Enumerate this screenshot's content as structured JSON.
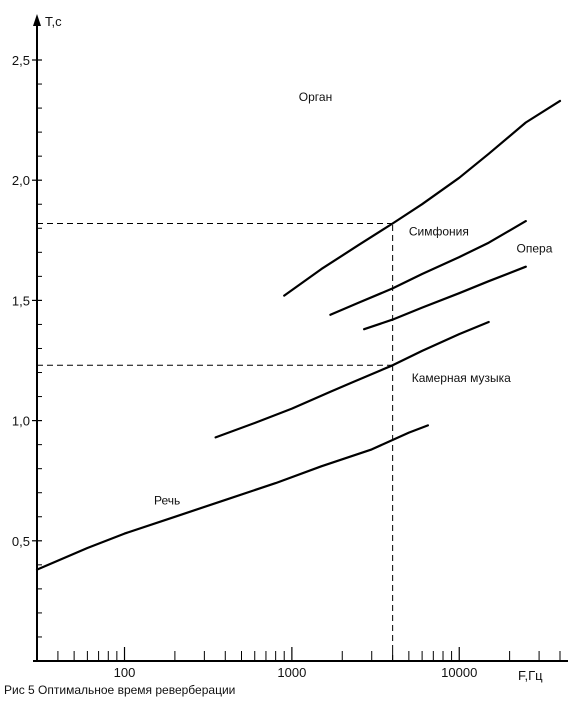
{
  "caption": "Рис 5 Оптимальное время реверберации",
  "chart_data": {
    "type": "line",
    "xlabel": "F,Гц",
    "ylabel": "T,c",
    "x_scale": "log",
    "xlim": [
      30,
      40000
    ],
    "ylim": [
      0,
      2.5
    ],
    "x_ticks_major": [
      {
        "value": 100,
        "label": "100"
      },
      {
        "value": 1000,
        "label": "1000"
      },
      {
        "value": 10000,
        "label": "10000"
      }
    ],
    "x_ticks_minor": [
      40,
      50,
      60,
      70,
      80,
      90,
      200,
      300,
      400,
      500,
      600,
      700,
      800,
      900,
      2000,
      3000,
      4000,
      5000,
      6000,
      7000,
      8000,
      9000,
      20000,
      30000,
      40000
    ],
    "y_ticks_major": [
      {
        "value": 0.5,
        "label": "0,5"
      },
      {
        "value": 1.0,
        "label": "1,0"
      },
      {
        "value": 1.5,
        "label": "1,5"
      },
      {
        "value": 2.0,
        "label": "2,0"
      },
      {
        "value": 2.5,
        "label": "2,5"
      }
    ],
    "y_ticks_minor": [
      0.1,
      0.2,
      0.3,
      0.4,
      0.6,
      0.7,
      0.8,
      0.9,
      1.1,
      1.2,
      1.3,
      1.4,
      1.6,
      1.7,
      1.8,
      1.9,
      2.1,
      2.2,
      2.3,
      2.4
    ],
    "grid": false,
    "legend": "none",
    "series": [
      {
        "name": "Орган",
        "label_at": [
          1100,
          2.33
        ],
        "points": [
          [
            900,
            1.52
          ],
          [
            1500,
            1.63
          ],
          [
            2500,
            1.73
          ],
          [
            4000,
            1.82
          ],
          [
            6000,
            1.9
          ],
          [
            10000,
            2.01
          ],
          [
            15000,
            2.11
          ],
          [
            25000,
            2.24
          ],
          [
            40000,
            2.33
          ]
        ]
      },
      {
        "name": "Симфония",
        "label_at": [
          5000,
          1.77
        ],
        "points": [
          [
            1700,
            1.44
          ],
          [
            2500,
            1.49
          ],
          [
            4000,
            1.55
          ],
          [
            6000,
            1.61
          ],
          [
            10000,
            1.68
          ],
          [
            15000,
            1.74
          ],
          [
            25000,
            1.83
          ]
        ]
      },
      {
        "name": "Опера",
        "label_at": [
          22000,
          1.7
        ],
        "points": [
          [
            2700,
            1.38
          ],
          [
            4000,
            1.42
          ],
          [
            6000,
            1.47
          ],
          [
            10000,
            1.53
          ],
          [
            15000,
            1.58
          ],
          [
            25000,
            1.64
          ]
        ]
      },
      {
        "name": "Камерная музыка",
        "label_at": [
          5200,
          1.16
        ],
        "points": [
          [
            350,
            0.93
          ],
          [
            600,
            0.99
          ],
          [
            1000,
            1.05
          ],
          [
            1700,
            1.12
          ],
          [
            2500,
            1.17
          ],
          [
            4000,
            1.23
          ],
          [
            6000,
            1.29
          ],
          [
            10000,
            1.36
          ],
          [
            15000,
            1.41
          ]
        ]
      },
      {
        "name": "Речь",
        "label_at": [
          150,
          0.65
        ],
        "points": [
          [
            30,
            0.38
          ],
          [
            60,
            0.47
          ],
          [
            100,
            0.53
          ],
          [
            200,
            0.6
          ],
          [
            400,
            0.67
          ],
          [
            800,
            0.74
          ],
          [
            1500,
            0.81
          ],
          [
            3000,
            0.88
          ],
          [
            5000,
            0.95
          ],
          [
            6500,
            0.98
          ]
        ]
      }
    ],
    "reference": {
      "x": 4000,
      "y_values": [
        1.82,
        1.23
      ]
    }
  }
}
